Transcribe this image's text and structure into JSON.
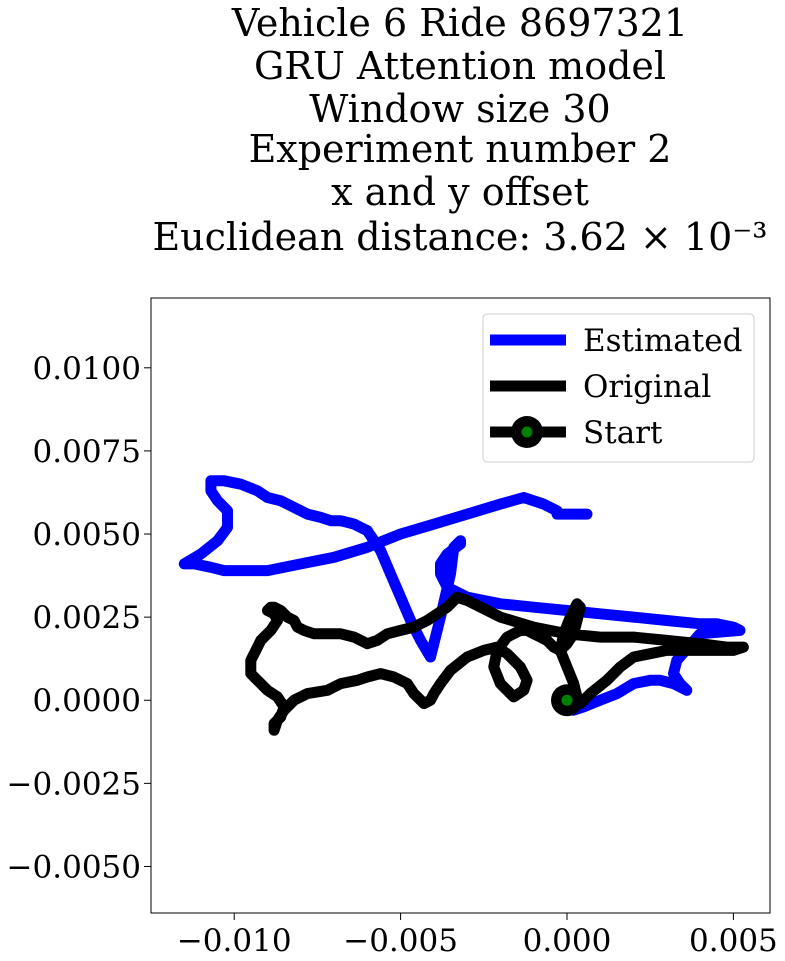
{
  "chart_data": {
    "type": "line",
    "title_lines": [
      "Vehicle 6 Ride 8697321",
      "GRU Attention model",
      "Window size 30",
      "Experiment number 2",
      "x and y offset",
      "Euclidean distance: 3.62 × 10⁻³"
    ],
    "xlabel": "",
    "ylabel": "",
    "xlim": [
      -0.0125,
      0.0061
    ],
    "ylim": [
      -0.0064,
      0.0121
    ],
    "x_ticks": [
      -0.01,
      -0.005,
      0.0,
      0.005
    ],
    "x_tick_labels": [
      "−0.010",
      "−0.005",
      "0.000",
      "0.005"
    ],
    "y_ticks": [
      -0.005,
      -0.0025,
      0.0,
      0.0025,
      0.005,
      0.0075,
      0.01
    ],
    "y_tick_labels": [
      "−0.0050",
      "−0.0025",
      "0.0000",
      "0.0025",
      "0.0050",
      "0.0075",
      "0.0100"
    ],
    "grid": false,
    "legend_position": "top-right",
    "series": [
      {
        "name": "Estimated",
        "color": "#0000ff",
        "x": [
          0.0006,
          -0.0003,
          -0.0003,
          -0.0007,
          -0.0013,
          -0.002,
          -0.003,
          -0.004,
          -0.005,
          -0.006,
          -0.007,
          -0.008,
          -0.009,
          -0.0098,
          -0.0103,
          -0.0107,
          -0.0112,
          -0.0115,
          -0.011,
          -0.0105,
          -0.0102,
          -0.0102,
          -0.0105,
          -0.0107,
          -0.0107,
          -0.0103,
          -0.0098,
          -0.0093,
          -0.009,
          -0.0086,
          -0.0082,
          -0.0078,
          -0.0074,
          -0.0071,
          -0.0068,
          -0.0064,
          -0.006,
          -0.0056,
          -0.0053,
          -0.005,
          -0.0047,
          -0.0044,
          -0.0041,
          -0.0038,
          -0.0035,
          -0.0034,
          -0.0032,
          -0.0032,
          -0.0036,
          -0.0038,
          -0.0038,
          -0.0036,
          -0.003,
          -0.0025,
          -0.002,
          -0.001,
          0.0,
          0.001,
          0.002,
          0.003,
          0.004,
          0.0045,
          0.005,
          0.0052,
          0.004,
          0.0033,
          0.0032,
          0.0034,
          0.0036,
          0.0032,
          0.0028,
          0.0025,
          0.002,
          0.0015,
          0.001,
          0.0005,
          0.0002
        ],
        "y": [
          0.0056,
          0.0056,
          0.0057,
          0.0059,
          0.0061,
          0.0059,
          0.0056,
          0.0053,
          0.005,
          0.0046,
          0.0043,
          0.0041,
          0.0039,
          0.0039,
          0.0039,
          0.004,
          0.0041,
          0.0041,
          0.0044,
          0.0048,
          0.0052,
          0.0057,
          0.006,
          0.0063,
          0.0066,
          0.0066,
          0.0065,
          0.0063,
          0.0061,
          0.006,
          0.0058,
          0.0056,
          0.0055,
          0.0054,
          0.0054,
          0.0053,
          0.0051,
          0.0045,
          0.0038,
          0.0031,
          0.0024,
          0.0018,
          0.0013,
          0.0025,
          0.0038,
          0.0046,
          0.0048,
          0.0047,
          0.0044,
          0.0041,
          0.0038,
          0.0034,
          0.0031,
          0.003,
          0.0029,
          0.0028,
          0.0027,
          0.0026,
          0.0025,
          0.0024,
          0.0023,
          0.0023,
          0.0022,
          0.0021,
          0.002,
          0.0012,
          0.0008,
          0.0005,
          0.0003,
          0.0005,
          0.0006,
          0.0006,
          0.0005,
          0.0002,
          0.0,
          -0.0002,
          -0.0003
        ]
      },
      {
        "name": "Original",
        "color": "#000000",
        "x": [
          -0.009,
          -0.0088,
          -0.0087,
          -0.0089,
          -0.0092,
          -0.0095,
          -0.0095,
          -0.0092,
          -0.009,
          -0.0087,
          -0.0085,
          -0.0086,
          -0.0088,
          -0.0088,
          -0.0087,
          -0.0085,
          -0.0082,
          -0.0078,
          -0.0072,
          -0.0068,
          -0.0063,
          -0.006,
          -0.0056,
          -0.0052,
          -0.0048,
          -0.0046,
          -0.0044,
          -0.0043,
          -0.0041,
          -0.004,
          -0.0038,
          -0.0035,
          -0.003,
          -0.0025,
          -0.0021,
          -0.0018,
          -0.0014,
          -0.0012,
          -0.0013,
          -0.0016,
          -0.002,
          -0.0022,
          -0.0021,
          -0.0018,
          -0.0014,
          -0.0012,
          -0.001,
          -0.0008,
          -0.0006,
          -0.0004,
          -0.0002,
          0.0,
          0.0002,
          0.0003,
          0.0004,
          0.0003,
          0.0001,
          -0.0001,
          -0.0002,
          0.0,
          0.0002,
          0.0003,
          0.0004,
          0.0007,
          0.0012,
          0.0016,
          0.002,
          0.0025,
          0.003,
          0.0035,
          0.004,
          0.0045,
          0.005,
          0.0053,
          0.0048,
          0.004,
          0.003,
          0.002,
          0.001,
          0.0,
          -0.001,
          -0.002,
          -0.003,
          -0.0033,
          -0.0036,
          -0.0039,
          -0.0042,
          -0.0046,
          -0.005,
          -0.0054,
          -0.0057,
          -0.006,
          -0.0064,
          -0.0068,
          -0.0072,
          -0.0076,
          -0.0079,
          -0.0081,
          -0.0082,
          -0.0084,
          -0.0086,
          -0.0088,
          -0.0089,
          -0.009
        ],
        "y": [
          0.0027,
          0.0026,
          0.0024,
          0.0021,
          0.0018,
          0.0012,
          0.0008,
          0.0005,
          0.0003,
          0.0001,
          -0.0002,
          -0.0005,
          -0.0007,
          -0.0009,
          -0.0006,
          -0.0003,
          0.0,
          0.0002,
          0.0003,
          0.0005,
          0.0006,
          0.0007,
          0.0008,
          0.0007,
          0.0005,
          0.0002,
          0.0,
          -0.0001,
          0.0,
          0.0002,
          0.0005,
          0.0009,
          0.0013,
          0.0015,
          0.0016,
          0.0014,
          0.001,
          0.0006,
          0.0003,
          0.0001,
          0.0005,
          0.001,
          0.0015,
          0.0019,
          0.0021,
          0.0021,
          0.002,
          0.0019,
          0.0018,
          0.0016,
          0.0015,
          0.0017,
          0.002,
          0.0024,
          0.0028,
          0.0029,
          0.0025,
          0.002,
          0.0015,
          0.001,
          0.0005,
          0.0001,
          -0.0001,
          0.0002,
          0.0006,
          0.001,
          0.0013,
          0.0014,
          0.0015,
          0.0015,
          0.0015,
          0.0015,
          0.0015,
          0.0016,
          0.0016,
          0.0017,
          0.0018,
          0.0019,
          0.0019,
          0.002,
          0.0022,
          0.0025,
          0.003,
          0.0031,
          0.0028,
          0.0026,
          0.0024,
          0.0022,
          0.0021,
          0.002,
          0.0018,
          0.0017,
          0.0019,
          0.002,
          0.002,
          0.002,
          0.0021,
          0.0022,
          0.0024,
          0.0025,
          0.0027,
          0.0028,
          0.0028,
          0.0027
        ]
      }
    ],
    "start_marker": {
      "name": "Start",
      "x": 0.0,
      "y": 0.0,
      "outer_color": "#000000",
      "inner_color": "#008000"
    }
  }
}
